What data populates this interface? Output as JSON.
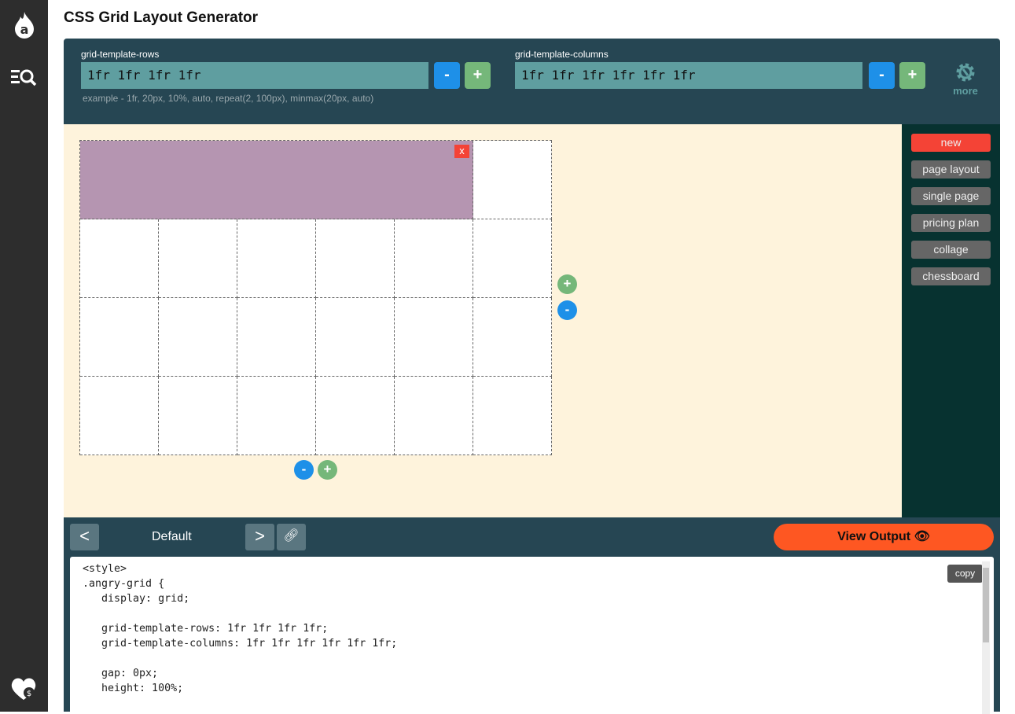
{
  "sidebar": {
    "icons": [
      "logo-icon",
      "search-menu-icon",
      "donate-heart-icon"
    ]
  },
  "header": {
    "title": "CSS Grid Layout Generator"
  },
  "controls": {
    "rows_label": "grid-template-rows",
    "rows_value": "1fr 1fr 1fr 1fr",
    "cols_label": "grid-template-columns",
    "cols_value": "1fr 1fr 1fr 1fr 1fr 1fr",
    "minus": "-",
    "plus": "+",
    "example": "example - 1fr, 20px, 10%, auto, repeat(2, 100px), minmax(20px, auto)",
    "more": "more"
  },
  "templates": {
    "items": [
      "new",
      "page layout",
      "single page",
      "pricing plan",
      "collage",
      "chessboard"
    ],
    "active_color": "#f44336"
  },
  "grid": {
    "rows": 4,
    "columns": 6,
    "item": {
      "row": "1",
      "columns": "1 / 6",
      "color": "#b595b1",
      "remove_label": "x"
    }
  },
  "bottom": {
    "prev": "<",
    "name": "Default",
    "next": ">",
    "view_output": "View Output",
    "copy": "copy",
    "code": "<style>\n.angry-grid {\n   display: grid;\n\n   grid-template-rows: 1fr 1fr 1fr 1fr;\n   grid-template-columns: 1fr 1fr 1fr 1fr 1fr 1fr;\n\n   gap: 0px;\n   height: 100%;"
  }
}
